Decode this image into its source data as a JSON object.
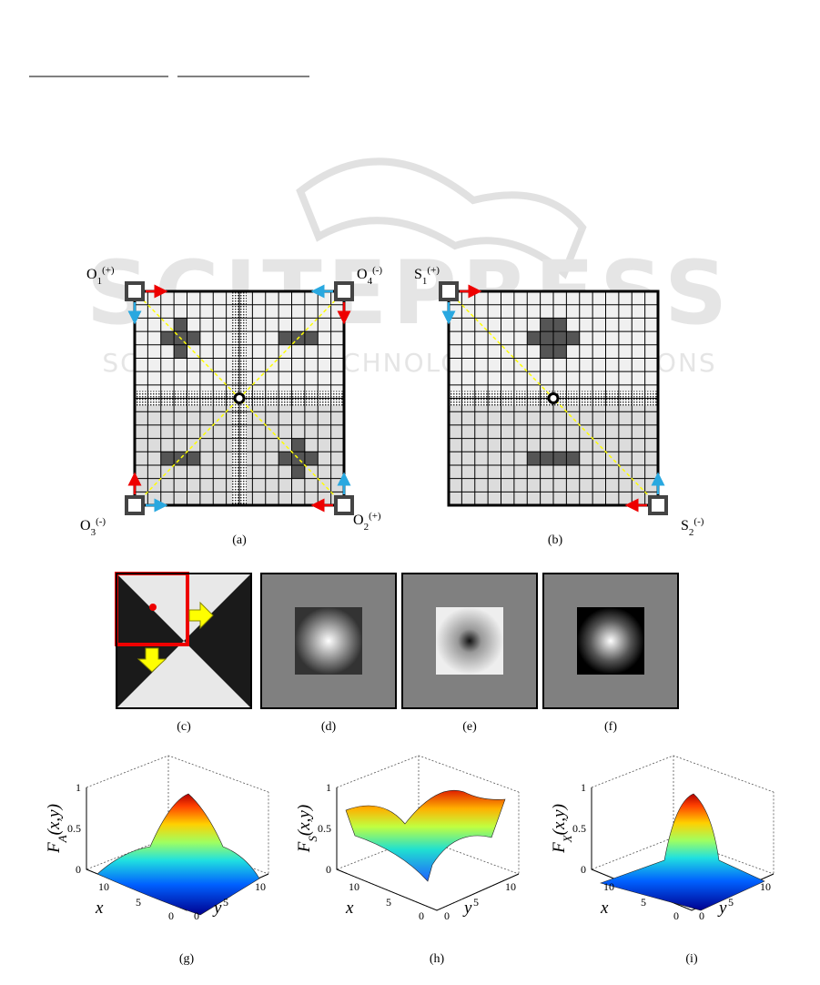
{
  "watermark": {
    "title": "SCITEPRESS",
    "subtitle": "SCIENCE AND TECHNOLOGY PUBLICATIONS"
  },
  "panel_a": {
    "corners": [
      {
        "base": "O",
        "sub": "1",
        "sup": "(+)"
      },
      {
        "base": "O",
        "sub": "4",
        "sup": "(-)"
      },
      {
        "base": "O",
        "sub": "3",
        "sup": "(-)"
      },
      {
        "base": "O",
        "sub": "2",
        "sup": "(+)"
      }
    ],
    "caption": "(a)"
  },
  "panel_b": {
    "corners": [
      {
        "base": "S",
        "sub": "1",
        "sup": "(+)"
      },
      {
        "base": "S",
        "sub": "2",
        "sup": "(-)"
      }
    ],
    "caption": "(b)"
  },
  "images": [
    {
      "caption": "(c)"
    },
    {
      "caption": "(d)"
    },
    {
      "caption": "(e)"
    },
    {
      "caption": "(f)"
    }
  ],
  "surfaces": [
    {
      "caption": "(g)",
      "zlabel": {
        "base": "F",
        "sub": "A",
        "rest": "(x,y)"
      },
      "zticks": [
        "0",
        "0.5",
        "1"
      ],
      "xticks": [
        "0",
        "5",
        "10"
      ],
      "yticks": [
        "0",
        "5",
        "10"
      ],
      "xlabel": "x",
      "ylabel": "y"
    },
    {
      "caption": "(h)",
      "zlabel": {
        "base": "F",
        "sub": "S",
        "rest": "(x,y)"
      },
      "zticks": [
        "0",
        "0.5",
        "1"
      ],
      "xticks": [
        "0",
        "5",
        "10"
      ],
      "yticks": [
        "0",
        "5",
        "10"
      ],
      "xlabel": "x",
      "ylabel": "y"
    },
    {
      "caption": "(i)",
      "zlabel": {
        "base": "F",
        "sub": "X",
        "rest": "(x,y)"
      },
      "zticks": [
        "0",
        "0.5",
        "1"
      ],
      "xticks": [
        "0",
        "5",
        "10"
      ],
      "yticks": [
        "0",
        "5",
        "10"
      ],
      "xlabel": "x",
      "ylabel": "y"
    }
  ]
}
